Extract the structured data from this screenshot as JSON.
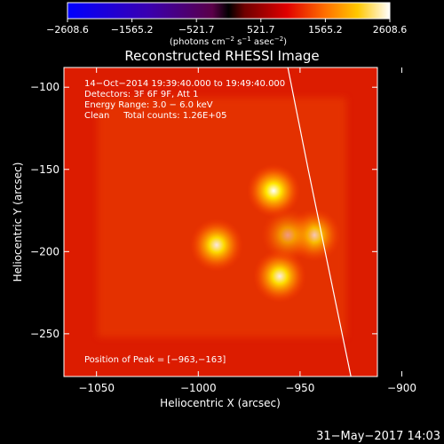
{
  "chart_data": {
    "type": "heatmap",
    "title": "Reconstructed RHESSI Image",
    "xlabel": "Heliocentric X (arcsec)",
    "ylabel": "Heliocentric Y (arcsec)",
    "xlim": [
      -1066,
      -912
    ],
    "ylim": [
      -276,
      -88
    ],
    "xticks": [
      -1050,
      -1000,
      -950,
      -900
    ],
    "yticks": [
      -100,
      -150,
      -200,
      -250
    ],
    "xtick_labels": [
      "−1050",
      "−1000",
      "−950",
      "−900"
    ],
    "ytick_labels": [
      "−100",
      "−150",
      "−200",
      "−250"
    ],
    "colorbar": {
      "ticks": [
        "−2608.6",
        "−1565.2",
        "−521.7",
        "521.7",
        "1565.2",
        "2608.6"
      ],
      "range": [
        -2608.6,
        2608.6
      ],
      "unit_main": "(photons cm",
      "unit_exp1": "−2",
      "unit_mid": " s",
      "unit_exp2": "−1",
      "unit_tail": " asec",
      "unit_exp3": "−2",
      "unit_close": ")"
    },
    "info_lines": [
      "14−Oct−2014 19:39:40.000 to 19:49:40.000",
      "Detectors: 3F 6F 9F, Att 1",
      "Energy Range: 3.0 − 6.0 keV",
      "Clean     Total counts: 1.26E+05"
    ],
    "peak_label": "Position of Peak = [−963,−163]",
    "sources": [
      {
        "x": -963,
        "y": -163,
        "amp": 1.0
      },
      {
        "x": -991,
        "y": -196,
        "amp": 0.88
      },
      {
        "x": -960,
        "y": -215,
        "amp": 0.9
      },
      {
        "x": -943,
        "y": -190,
        "amp": 0.72
      },
      {
        "x": -956,
        "y": -190,
        "amp": 0.5
      }
    ],
    "limb_points": [
      [
        -956,
        -88
      ],
      [
        -946,
        -150
      ],
      [
        -936,
        -210
      ],
      [
        -925,
        -276
      ]
    ]
  },
  "footer": {
    "timestamp": "31−May−2017 14:03"
  },
  "colors": {
    "background": "#000000",
    "limb": "#ffffff",
    "text": "#ffffff"
  }
}
